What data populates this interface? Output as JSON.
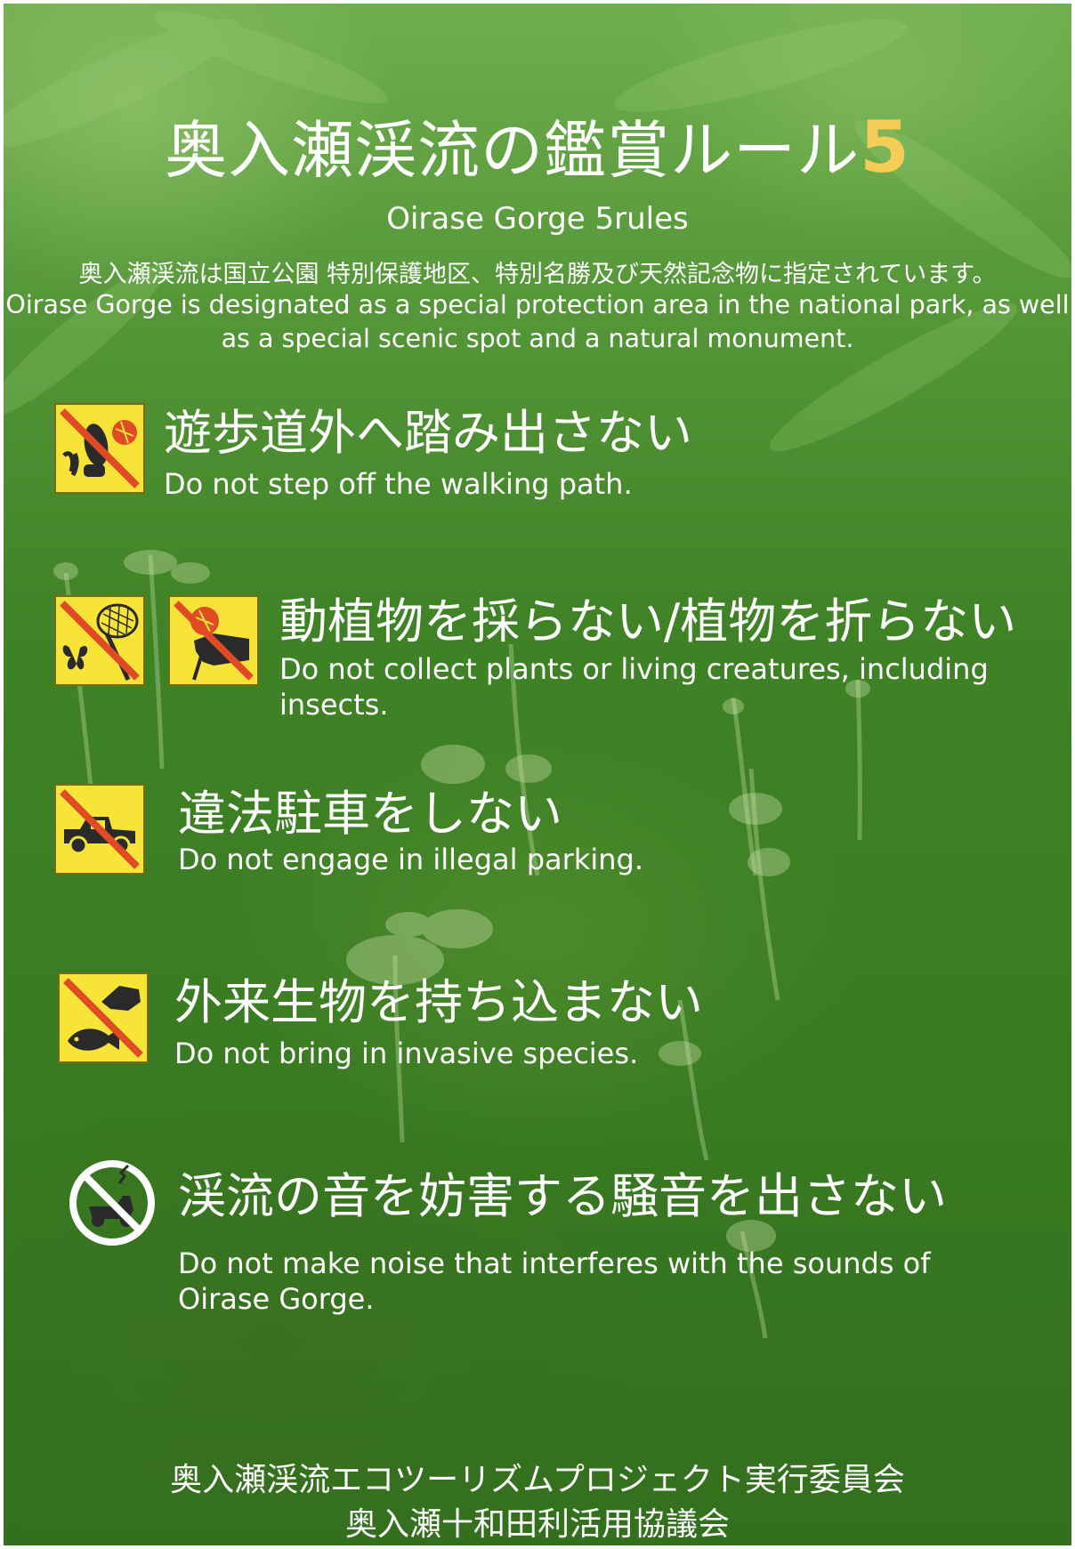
{
  "title_main": "奥入瀬渓流の鑑賞ルール",
  "title_number": "5",
  "subtitle": "Oirase Gorge 5rules",
  "intro_jp": "奥入瀬渓流は国立公園 特別保護地区、特別名勝及び天然記念物に指定されています。",
  "intro_en": "Oirase Gorge is designated as a special protection area in the national park, as well as a special scenic spot and a natural monument.",
  "rules": [
    {
      "jp": "遊歩道外へ踏み出さない",
      "en": "Do not step off the walking path."
    },
    {
      "jp": "動植物を採らない/植物を折らない",
      "en_line1": "Do not collect plants or living creatures, including",
      "en_line2": "insects."
    },
    {
      "jp": "違法駐車をしない",
      "en": "Do not engage in illegal parking."
    },
    {
      "jp": "外来生物を持ち込まない",
      "en": "Do not bring in invasive species."
    },
    {
      "jp": "渓流の音を妨害する騒音を出さない",
      "en_line1": "Do not make noise that interferes with the sounds of",
      "en_line2": "Oirase Gorge."
    }
  ],
  "footer": {
    "line1": "奥入瀬渓流エコツーリズムプロジェクト実行委員会",
    "line2": "奥入瀬十和田利活用協議会"
  },
  "icons": [
    "no-stepping-icon",
    "no-insect-catching-icon",
    "no-flower-picking-icon",
    "no-parking-icon",
    "no-invasive-species-icon",
    "no-noise-icon"
  ],
  "colors": {
    "sign_yellow": "#f7e437",
    "prohibit_red": "#e04a24",
    "title_accent": "#f3cd55",
    "text": "#ffffff"
  }
}
